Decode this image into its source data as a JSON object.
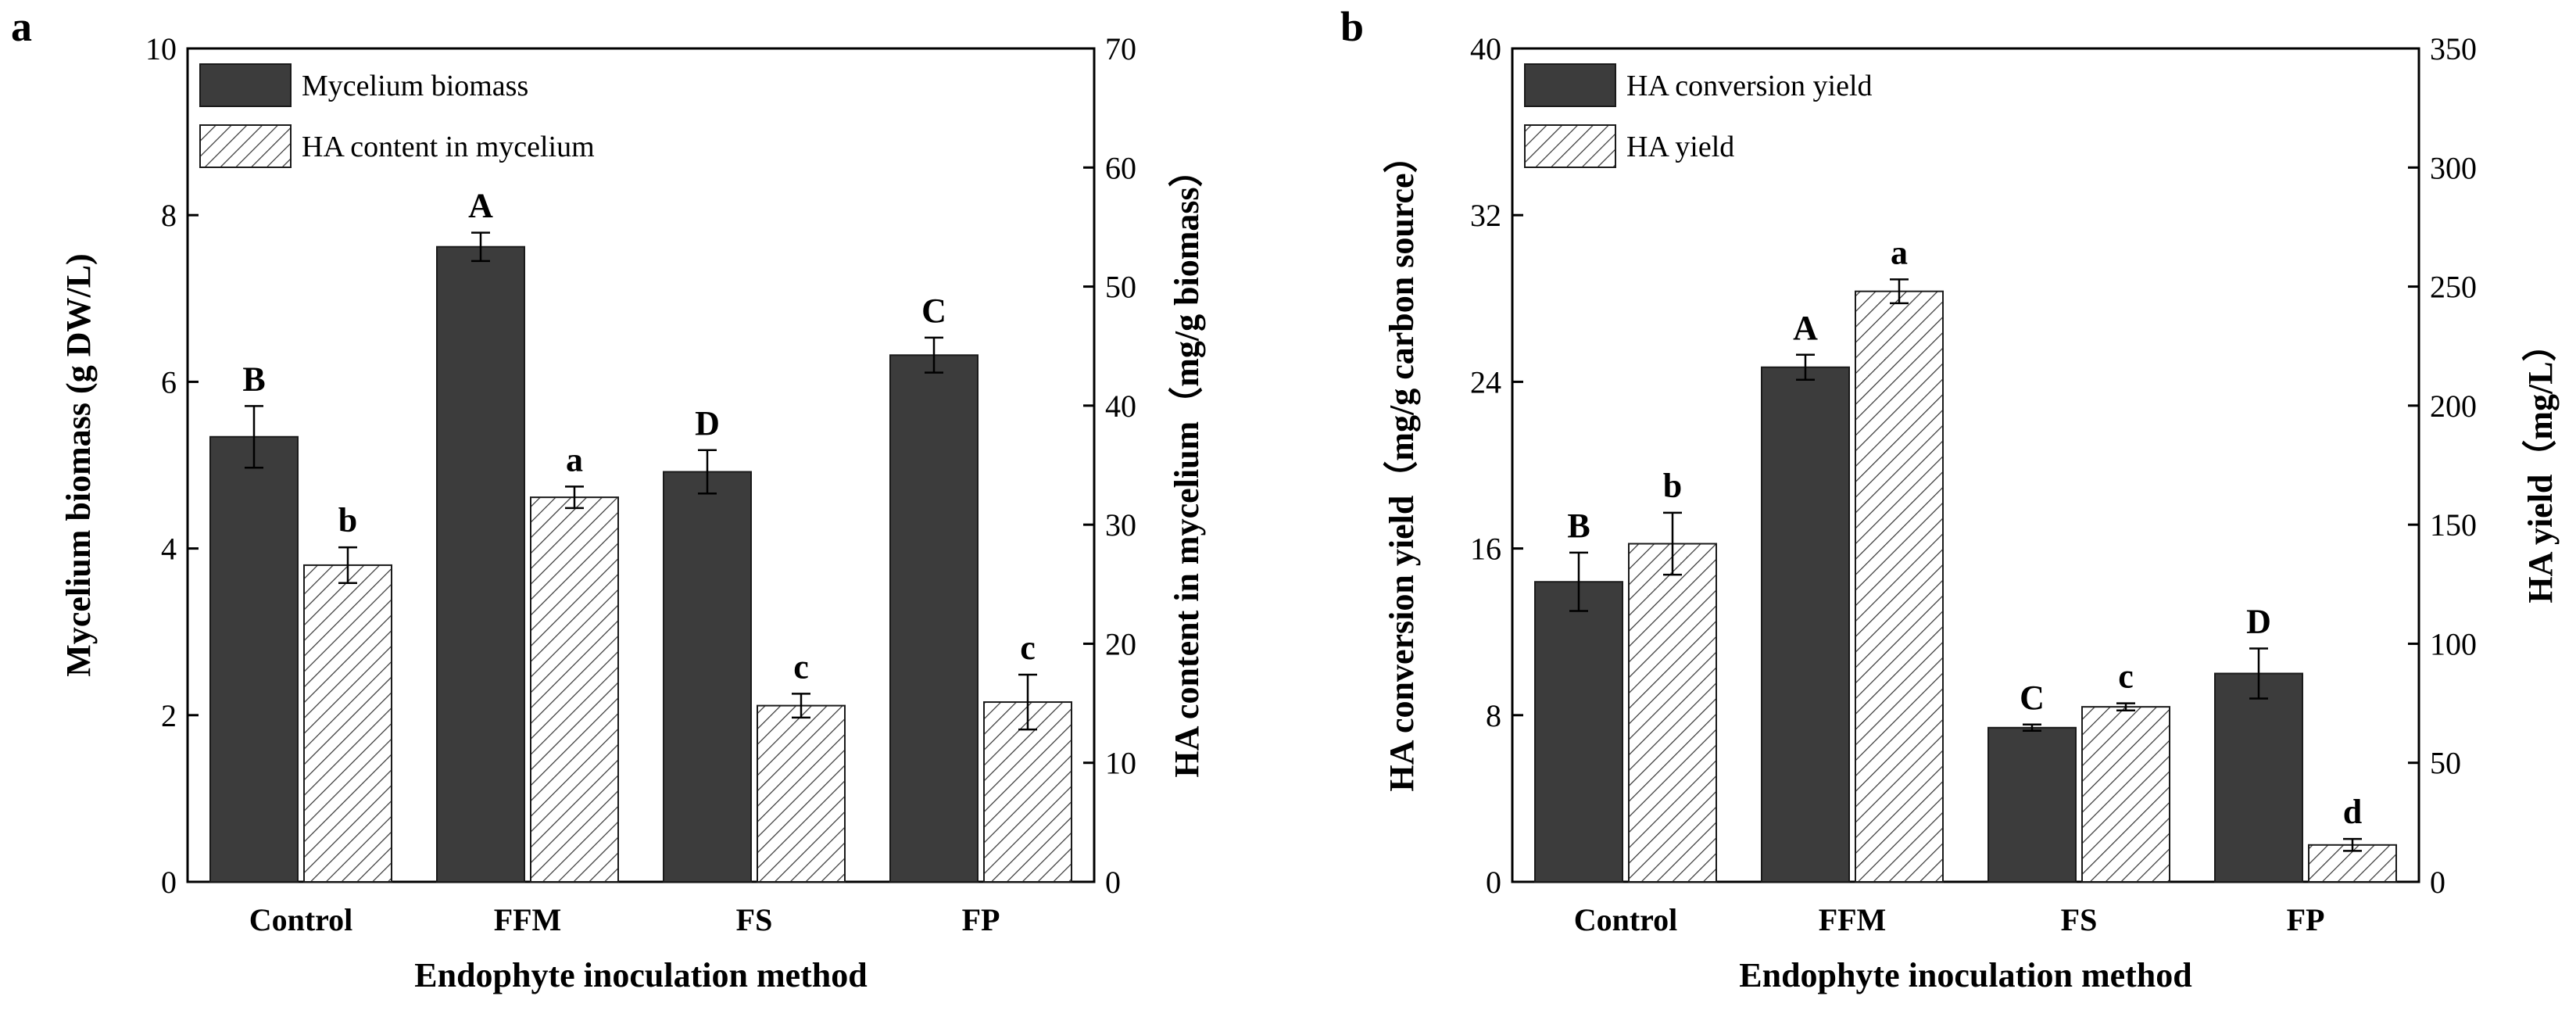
{
  "figure": {
    "panels": [
      "a",
      "b"
    ]
  },
  "chart_data": [
    {
      "panel_label": "a",
      "type": "bar",
      "xlabel": "Endophyte inoculation method",
      "categories": [
        "Control",
        "FFM",
        "FS",
        "FP"
      ],
      "y_left": {
        "label": "Mycelium biomass (g DW/L)",
        "ylim": [
          0,
          10
        ],
        "ticks": [
          0,
          2,
          4,
          6,
          8,
          10
        ],
        "tick_labels": [
          "0",
          "2",
          "4",
          "6",
          "8",
          "10"
        ]
      },
      "y_right": {
        "label": "HA content in mycelium（mg/g biomass）",
        "ylim": [
          0,
          70
        ],
        "ticks": [
          0,
          10,
          20,
          30,
          40,
          50,
          60,
          70
        ],
        "tick_labels": [
          "0",
          "10",
          "20",
          "30",
          "40",
          "50",
          "60",
          "70"
        ]
      },
      "series": [
        {
          "name": "Mycelium biomass",
          "axis": "left",
          "style": "solid",
          "color": "#3c3c3c",
          "values": [
            5.34,
            7.62,
            4.92,
            6.32
          ],
          "errors": [
            0.37,
            0.17,
            0.26,
            0.21
          ],
          "significance": [
            "B",
            "A",
            "D",
            "C"
          ]
        },
        {
          "name": "HA content in mycelium",
          "axis": "right",
          "style": "hatched",
          "color": "#3c3c3c",
          "values": [
            26.6,
            32.3,
            14.8,
            15.1
          ],
          "errors": [
            1.5,
            0.9,
            1.0,
            2.3
          ],
          "significance": [
            "b",
            "a",
            "c",
            "c"
          ]
        }
      ]
    },
    {
      "panel_label": "b",
      "type": "bar",
      "xlabel": "Endophyte inoculation method",
      "categories": [
        "Control",
        "FFM",
        "FS",
        "FP"
      ],
      "y_left": {
        "label": "HA conversion yield（mg/g carbon source）",
        "ylim": [
          0,
          40
        ],
        "ticks": [
          0,
          8,
          16,
          24,
          32,
          40
        ],
        "tick_labels": [
          "0",
          "8",
          "16",
          "24",
          "32",
          "40"
        ]
      },
      "y_right": {
        "label": "HA  yield（mg/L）",
        "ylim": [
          0,
          350
        ],
        "ticks": [
          0,
          50,
          100,
          150,
          200,
          250,
          300,
          350
        ],
        "tick_labels": [
          "0",
          "50",
          "100",
          "150",
          "200",
          "250",
          "300",
          "350"
        ]
      },
      "series": [
        {
          "name": "HA conversion yield",
          "axis": "left",
          "style": "solid",
          "color": "#3c3c3c",
          "values": [
            14.4,
            24.7,
            7.4,
            10.0
          ],
          "errors": [
            1.4,
            0.6,
            0.15,
            1.2
          ],
          "significance": [
            "B",
            "A",
            "C",
            "D"
          ]
        },
        {
          "name": "HA  yield",
          "axis": "right",
          "style": "hatched",
          "color": "#3c3c3c",
          "values": [
            142,
            248,
            73.5,
            15.5
          ],
          "errors": [
            13,
            5,
            1.5,
            2.5
          ],
          "significance": [
            "b",
            "a",
            "c",
            "d"
          ]
        }
      ]
    }
  ]
}
